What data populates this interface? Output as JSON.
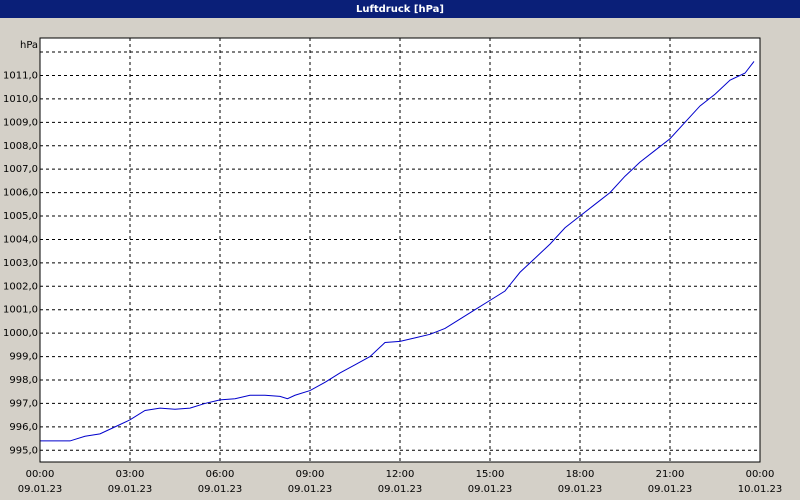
{
  "chart_data": {
    "type": "line",
    "title": "Luftdruck [hPa]",
    "y_unit": "hPa",
    "x": [
      0,
      0.5,
      1,
      1.5,
      2,
      2.5,
      3,
      3.5,
      4,
      4.5,
      5,
      5.5,
      6,
      6.5,
      7,
      7.5,
      8,
      8.25,
      8.5,
      9,
      9.5,
      10,
      10.5,
      11,
      11.5,
      12,
      12.5,
      13,
      13.5,
      14,
      14.5,
      15,
      15.5,
      16,
      16.5,
      17,
      17.5,
      18,
      18.5,
      19,
      19.5,
      20,
      20.5,
      21,
      21.5,
      22,
      22.5,
      23,
      23.5,
      23.8
    ],
    "series": [
      {
        "name": "Luftdruck",
        "color": "#0000cc",
        "values": [
          995.4,
          995.4,
          995.4,
          995.6,
          995.7,
          996.0,
          996.3,
          996.7,
          996.8,
          996.75,
          996.8,
          997.0,
          997.15,
          997.2,
          997.35,
          997.35,
          997.3,
          997.2,
          997.35,
          997.55,
          997.9,
          998.3,
          998.65,
          999.0,
          999.6,
          999.65,
          999.8,
          999.95,
          1000.2,
          1000.6,
          1001.0,
          1001.4,
          1001.8,
          1002.6,
          1003.2,
          1003.8,
          1004.5,
          1005.0,
          1005.5,
          1006.0,
          1006.7,
          1007.3,
          1007.8,
          1008.3,
          1009.0,
          1009.7,
          1010.2,
          1010.8,
          1011.1,
          1011.6
        ]
      }
    ],
    "xlim": [
      0,
      24
    ],
    "xticks": [
      {
        "value": 0,
        "label": "00:00"
      },
      {
        "value": 3,
        "label": "03:00"
      },
      {
        "value": 6,
        "label": "06:00"
      },
      {
        "value": 9,
        "label": "09:00"
      },
      {
        "value": 12,
        "label": "12:00"
      },
      {
        "value": 15,
        "label": "15:00"
      },
      {
        "value": 18,
        "label": "18:00"
      },
      {
        "value": 21,
        "label": "21:00"
      },
      {
        "value": 24,
        "label": "00:00"
      }
    ],
    "xtick_dates": [
      "09.01.23",
      "09.01.23",
      "09.01.23",
      "09.01.23",
      "09.01.23",
      "09.01.23",
      "09.01.23",
      "09.01.23",
      "10.01.23"
    ],
    "ylim": [
      994.5,
      1012.6
    ],
    "yticks": [
      {
        "value": 995,
        "label": "995,0"
      },
      {
        "value": 996,
        "label": "996,0"
      },
      {
        "value": 997,
        "label": "997,0"
      },
      {
        "value": 998,
        "label": "998,0"
      },
      {
        "value": 999,
        "label": "999,0"
      },
      {
        "value": 1000,
        "label": "1000,0"
      },
      {
        "value": 1001,
        "label": "1001,0"
      },
      {
        "value": 1002,
        "label": "1002,0"
      },
      {
        "value": 1003,
        "label": "1003,0"
      },
      {
        "value": 1004,
        "label": "1004,0"
      },
      {
        "value": 1005,
        "label": "1005,0"
      },
      {
        "value": 1006,
        "label": "1006,0"
      },
      {
        "value": 1007,
        "label": "1007,0"
      },
      {
        "value": 1008,
        "label": "1008,0"
      },
      {
        "value": 1009,
        "label": "1009,0"
      },
      {
        "value": 1010,
        "label": "1010,0"
      },
      {
        "value": 1011,
        "label": "1011,0"
      },
      {
        "value": 1012,
        "label": null
      }
    ],
    "grid": true
  }
}
